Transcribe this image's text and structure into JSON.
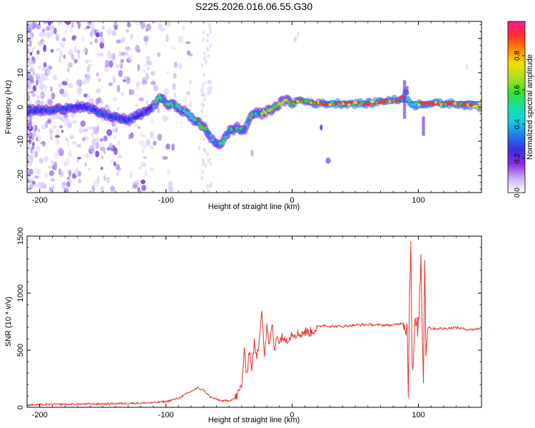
{
  "title": "S225.2026.016.06.55.G30",
  "chart_data": [
    {
      "type": "heatmap",
      "name": "spectrogram",
      "xlabel": "Height of straight line (km)",
      "ylabel": "Frequency (Hz)",
      "xlim": [
        -210,
        150
      ],
      "ylim": [
        -25,
        25
      ],
      "xticks": [
        -200,
        -100,
        0,
        100
      ],
      "yticks": [
        -20,
        -10,
        0,
        10,
        20
      ],
      "colorbar": {
        "label": "Normalized spectral amplitude",
        "range": [
          0,
          1
        ],
        "ticks": [
          "0.0",
          "0.2",
          "0.4",
          "0.6",
          "0.8"
        ],
        "colors": [
          "#ffffff",
          "#c9b0f5",
          "#8a2be2",
          "#3a2ee6",
          "#1f7ae8",
          "#10d0e8",
          "#18e0a0",
          "#36e030",
          "#a8e020",
          "#f0e000",
          "#ff9000",
          "#ff3030",
          "#ff1a8a"
        ]
      },
      "ridge": {
        "note": "dominant frequency (Hz) vs height (km)",
        "x": [
          -205,
          -190,
          -175,
          -165,
          -150,
          -140,
          -130,
          -120,
          -110,
          -105,
          -100,
          -90,
          -80,
          -70,
          -62,
          -56,
          -50,
          -44,
          -38,
          -32,
          -25,
          -18,
          -10,
          -5,
          0,
          5,
          20,
          40,
          60,
          75,
          85,
          90,
          95,
          100,
          110,
          130,
          150
        ],
        "y": [
          -1,
          -1,
          0,
          0,
          -2,
          -3,
          -4,
          -2,
          0,
          3,
          1,
          0,
          -3,
          -6,
          -10,
          -11,
          -7,
          -6,
          -7,
          -2,
          -2,
          -1,
          1,
          2,
          1,
          2,
          1,
          1,
          1,
          2,
          2,
          4,
          0,
          1,
          1,
          1,
          0
        ]
      }
    },
    {
      "type": "line",
      "name": "snr",
      "xlabel": "Height of straight line (km)",
      "ylabel": "SNR (10 * v/v)",
      "xlim": [
        -210,
        150
      ],
      "ylim": [
        0,
        1500
      ],
      "xticks": [
        -200,
        -100,
        0,
        100
      ],
      "yticks": [
        0,
        500,
        1000,
        1500
      ],
      "series": [
        {
          "name": "SNR",
          "color": "#e8302a",
          "x": [
            -210,
            -190,
            -170,
            -150,
            -130,
            -110,
            -100,
            -90,
            -85,
            -80,
            -75,
            -70,
            -65,
            -60,
            -55,
            -50,
            -45,
            -42,
            -40,
            -38,
            -36,
            -34,
            -32,
            -30,
            -28,
            -26,
            -24,
            -22,
            -20,
            -18,
            -16,
            -14,
            -12,
            -10,
            -8,
            -6,
            -4,
            -2,
            0,
            5,
            10,
            15,
            20,
            25,
            30,
            40,
            50,
            60,
            70,
            80,
            88,
            91,
            92,
            93,
            94,
            95,
            96,
            97,
            98,
            100,
            102,
            104,
            105,
            106,
            108,
            110,
            120,
            130,
            140,
            150
          ],
          "y": [
            20,
            25,
            28,
            30,
            35,
            40,
            50,
            80,
            110,
            140,
            170,
            150,
            90,
            70,
            55,
            60,
            80,
            140,
            200,
            480,
            300,
            500,
            350,
            560,
            420,
            620,
            880,
            450,
            700,
            520,
            750,
            480,
            660,
            550,
            640,
            580,
            600,
            620,
            650,
            640,
            660,
            660,
            700,
            720,
            710,
            710,
            720,
            725,
            720,
            720,
            740,
            700,
            150,
            1000,
            1500,
            300,
            400,
            700,
            720,
            700,
            1300,
            200,
            1350,
            500,
            710,
            690,
            690,
            700,
            680,
            690
          ]
        }
      ]
    }
  ]
}
